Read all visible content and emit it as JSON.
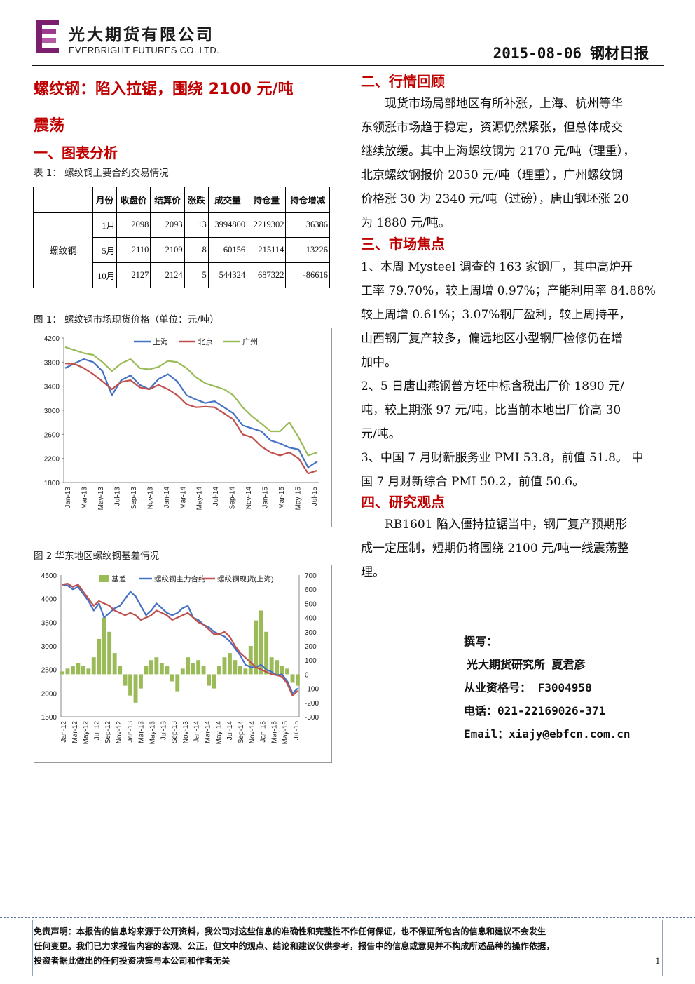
{
  "header": {
    "company_cn": "光大期货有限公司",
    "company_en": "EVERBRIGHT FUTURES CO.,LTD.",
    "date": "2015-08-06",
    "report_title": "钢材日报"
  },
  "main_title_line1": "螺纹钢：陷入拉锯，围绕 2100 元/吨",
  "main_title_line2": "震荡",
  "section1": {
    "heading": "一、图表分析",
    "table_caption": "表 1：  螺纹钢主要合约交易情况",
    "table": {
      "headers": [
        "月份",
        "收盘价",
        "结算价",
        "涨跌",
        "成交量",
        "持仓量",
        "持仓增减"
      ],
      "row_label": "螺纹钢",
      "rows": [
        [
          "1月",
          "2098",
          "2093",
          "13",
          "3994800",
          "2219302",
          "36386"
        ],
        [
          "5月",
          "2110",
          "2109",
          "8",
          "60156",
          "215114",
          "13226"
        ],
        [
          "10月",
          "2127",
          "2124",
          "5",
          "544324",
          "687322",
          "-86616"
        ]
      ]
    },
    "fig1_caption": "图 1：  螺纹钢市场现货价格（单位：元/吨）",
    "fig2_caption": "图 2  华东地区螺纹钢基差情况"
  },
  "chart_data": [
    {
      "type": "line",
      "title": "",
      "xlabel": "",
      "ylabel": "",
      "ylim": [
        1800,
        4200
      ],
      "y_ticks": [
        "4200",
        "3800",
        "3400",
        "3000",
        "2600",
        "2200",
        "1800"
      ],
      "x_ticks": [
        "Jan-13",
        "Mar-13",
        "May-13",
        "Jul-13",
        "Sep-13",
        "Nov-13",
        "Jan-14",
        "Mar-14",
        "May-14",
        "Jul-14",
        "Sep-14",
        "Nov-14",
        "Jan-15",
        "Mar-15",
        "May-15",
        "Jul-15"
      ],
      "legend_position": "top",
      "series": [
        {
          "name": "上海",
          "color": "#4472c4",
          "values": [
            3700,
            3780,
            3850,
            3800,
            3650,
            3250,
            3500,
            3580,
            3420,
            3350,
            3520,
            3600,
            3480,
            3250,
            3180,
            3120,
            3150,
            3050,
            2950,
            2750,
            2700,
            2650,
            2500,
            2450,
            2380,
            2350,
            2050,
            2150
          ]
        },
        {
          "name": "北京",
          "color": "#c0504d",
          "values": [
            3780,
            3770,
            3700,
            3600,
            3480,
            3350,
            3470,
            3500,
            3380,
            3350,
            3420,
            3350,
            3250,
            3100,
            3050,
            3060,
            3050,
            2950,
            2850,
            2600,
            2550,
            2400,
            2300,
            2250,
            2300,
            2200,
            1950,
            2000
          ]
        },
        {
          "name": "广州",
          "color": "#9bbb59",
          "values": [
            4050,
            4000,
            3950,
            3920,
            3800,
            3650,
            3780,
            3850,
            3700,
            3680,
            3720,
            3820,
            3800,
            3700,
            3550,
            3450,
            3400,
            3350,
            3250,
            3050,
            2900,
            2780,
            2650,
            2650,
            2800,
            2550,
            2250,
            2300
          ]
        }
      ]
    },
    {
      "type": "line",
      "title": "",
      "xlabel": "",
      "ylabel": "",
      "ylim": [
        1500,
        4500
      ],
      "y2lim": [
        -300,
        700
      ],
      "y_ticks": [
        "4500",
        "4000",
        "3500",
        "3000",
        "2500",
        "2000",
        "1500"
      ],
      "y2_ticks": [
        "700",
        "600",
        "500",
        "400",
        "300",
        "200",
        "100",
        "0",
        "-100",
        "-200",
        "-300"
      ],
      "x_ticks": [
        "Jan-12",
        "Mar-12",
        "May-12",
        "Jul-12",
        "Sep-12",
        "Nov-12",
        "Jan-13",
        "Mar-13",
        "May-13",
        "Jul-13",
        "Sep-13",
        "Nov-13",
        "Jan-14",
        "Mar-14",
        "May-14",
        "Jul-14",
        "Sep-14",
        "Nov-14",
        "Jan-15",
        "Mar-15",
        "May-15",
        "Jul-15"
      ],
      "legend_position": "top",
      "series": [
        {
          "name": "基差",
          "color": "#9bbb59",
          "axis": "right",
          "kind": "bar",
          "values": [
            20,
            40,
            60,
            80,
            60,
            40,
            120,
            250,
            400,
            300,
            150,
            60,
            -80,
            -150,
            -200,
            -100,
            60,
            100,
            120,
            80,
            60,
            -50,
            -120,
            40,
            120,
            80,
            100,
            60,
            -80,
            -100,
            60,
            120,
            150,
            100,
            60,
            40,
            200,
            380,
            450,
            300,
            120,
            100,
            60,
            40,
            -60,
            -80
          ]
        },
        {
          "name": "螺纹钢主力合约",
          "color": "#4472c4",
          "axis": "left",
          "kind": "line",
          "values": [
            4300,
            4280,
            4200,
            4250,
            4100,
            3950,
            3750,
            3900,
            3600,
            3700,
            3800,
            3850,
            4000,
            4150,
            4050,
            3850,
            3650,
            3750,
            3900,
            3800,
            3700,
            3650,
            3700,
            3800,
            3850,
            3600,
            3550,
            3450,
            3400,
            3300,
            3250,
            3200,
            3100,
            2950,
            2800,
            2600,
            2550,
            2550,
            2600,
            2500,
            2450,
            2380,
            2400,
            2250,
            2000,
            2100
          ]
        },
        {
          "name": "螺纹钢现货(上海)",
          "color": "#c0504d",
          "axis": "left",
          "kind": "line",
          "values": [
            4300,
            4320,
            4250,
            4300,
            4150,
            4000,
            3850,
            3950,
            3900,
            3850,
            3750,
            3700,
            3650,
            3700,
            3650,
            3550,
            3600,
            3650,
            3750,
            3700,
            3650,
            3550,
            3600,
            3650,
            3700,
            3600,
            3500,
            3450,
            3350,
            3250,
            3250,
            3300,
            3200,
            3000,
            2850,
            2750,
            2650,
            2550,
            2500,
            2450,
            2400,
            2380,
            2350,
            2200,
            1950,
            2050
          ]
        }
      ]
    }
  ],
  "section2": {
    "heading": "二、行情回顾",
    "lines": [
      "现货市场局部地区有所补涨，上海、杭州等华",
      "东领涨市场趋于稳定，资源仍然紧张，但总体成交",
      "继续放缓。其中上海螺纹钢为 2170 元/吨（理重），",
      "北京螺纹钢报价 2050 元/吨（理重），广州螺纹钢",
      "价格涨 30 为 2340 元/吨（过磅），唐山钢坯涨 20",
      "为 1880 元/吨。"
    ]
  },
  "section3": {
    "heading": "三、市场焦点",
    "lines": [
      "1、本周 Mysteel 调查的 163 家钢厂，其中高炉开",
      "工率 79.70%，较上周增 0.97%；产能利用率 84.88%",
      "较上周增 0.61%；3.07%钢厂盈利，较上周持平，",
      "山西钢厂复产较多，偏远地区小型钢厂检修仍在增",
      "加中。",
      "2、5 日唐山燕钢普方坯中标含税出厂价 1890 元/",
      "吨，较上期涨 97 元/吨，比当前本地出厂价高 30",
      "元/吨。",
      "3、中国 7 月财新服务业 PMI 53.8，前值 51.8。 中",
      "国 7 月财新综合 PMI 50.2，前值 50.6。"
    ]
  },
  "section4": {
    "heading": "四、研究观点",
    "lines": [
      "RB1601 陷入僵持拉锯当中，钢厂复产预期形",
      "成一定压制，短期仍将围绕 2100 元/吨一线震荡整",
      "理。"
    ]
  },
  "author": {
    "label": "撰写：",
    "name": "光大期货研究所  夏君彦",
    "license": "从业资格号：  F3004958",
    "phone": "电话：021-22169026-371",
    "email": "Email：xiajy@ebfcn.com.cn"
  },
  "disclaimer": {
    "line1": "免责声明：本报告的信息均来源于公开资料，我公司对这些信息的准确性和完整性不作任何保证，也不保证所包含的信息和建议不会发生",
    "line2": "任何变更。我们已力求报告内容的客观、公正，但文中的观点、结论和建议仅供参考，报告中的信息或意见并不构成所述品种的操作依据，",
    "line3": "投资者据此做出的任何投资决策与本公司和作者无关"
  },
  "page_number": "1"
}
